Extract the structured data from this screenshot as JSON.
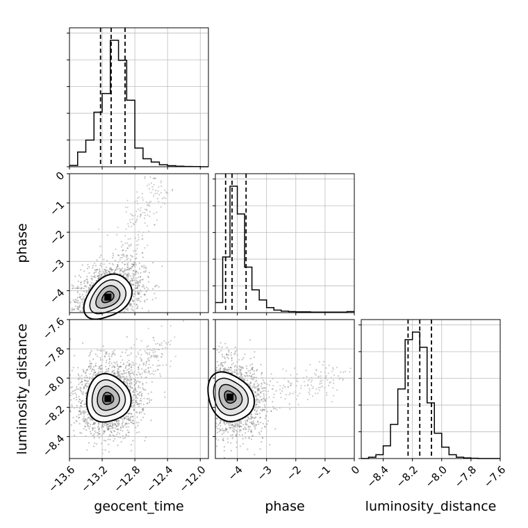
{
  "chart_data": {
    "type": "corner",
    "parameters": [
      {
        "label": "geocent_time",
        "range": [
          -13.6,
          -11.9
        ],
        "ticks": [
          -13.6,
          -13.2,
          -12.8,
          -12.4,
          -12.0
        ],
        "tick_labels": [
          "−13.6",
          "−13.2",
          "−12.8",
          "−12.4",
          "−12.0"
        ],
        "quantiles": [
          -13.22,
          -13.09,
          -12.92
        ],
        "hist_bins": [
          -13.6,
          -13.5,
          -13.4,
          -13.3,
          -13.2,
          -13.1,
          -13.0,
          -12.9,
          -12.8,
          -12.7,
          -12.6,
          -12.5,
          -12.4,
          -12.3,
          -12.2,
          -12.1,
          -12.0,
          -11.9
        ],
        "hist_values": [
          0.01,
          0.11,
          0.2,
          0.41,
          0.55,
          0.95,
          0.8,
          0.5,
          0.14,
          0.06,
          0.035,
          0.015,
          0.008,
          0.004,
          0.002,
          0.001,
          0.0
        ]
      },
      {
        "label": "phase",
        "range": [
          -4.75,
          0.0
        ],
        "ticks": [
          -4,
          -3,
          -2,
          -1,
          0
        ],
        "tick_labels": [
          "−4",
          "−3",
          "−2",
          "−1",
          "0"
        ],
        "quantiles": [
          -4.4,
          -4.18,
          -3.7
        ],
        "hist_bins": [
          -4.75,
          -4.5,
          -4.25,
          -4.0,
          -3.75,
          -3.5,
          -3.25,
          -3.0,
          -2.75,
          -2.5,
          -2.25,
          -2.0,
          -1.75,
          -1.5,
          -1.25,
          -1.0,
          -0.75,
          -0.5,
          -0.25,
          0.0
        ],
        "hist_values": [
          0.04,
          0.22,
          0.5,
          0.39,
          0.18,
          0.09,
          0.05,
          0.02,
          0.01,
          0.006,
          0.004,
          0.003,
          0.003,
          0.002,
          0.002,
          0.002,
          0.002,
          0.002,
          0.004
        ]
      },
      {
        "label": "luminosity_distance",
        "range": [
          -8.55,
          -7.6
        ],
        "ticks": [
          -8.4,
          -8.2,
          -8.0,
          -7.8,
          -7.6
        ],
        "tick_labels": [
          "−8.4",
          "−8.2",
          "−8.0",
          "−7.8",
          "−7.6"
        ],
        "quantiles": [
          -8.23,
          -8.15,
          -8.07
        ],
        "hist_bins": [
          -8.55,
          -8.5,
          -8.45,
          -8.4,
          -8.35,
          -8.3,
          -8.25,
          -8.2,
          -8.15,
          -8.1,
          -8.05,
          -8.0,
          -7.95,
          -7.9,
          -7.85,
          -7.8,
          -7.75,
          -7.7,
          -7.65,
          -7.6
        ],
        "hist_values": [
          0.0,
          0.01,
          0.03,
          0.1,
          0.27,
          0.55,
          0.94,
          1.0,
          0.88,
          0.44,
          0.2,
          0.09,
          0.03,
          0.01,
          0.005,
          0.002,
          0.0,
          0.0,
          0.0
        ]
      }
    ],
    "pair_panels": [
      {
        "x_param": 0,
        "y_param": 1,
        "peak": [
          -13.13,
          -4.22
        ],
        "contour_levels_sigma": [
          0.5,
          1.0,
          1.5,
          2.0
        ],
        "sigma": [
          0.14,
          0.37
        ],
        "tilt": 0.35,
        "scatter_tail_to": [
          -12.5,
          -0.2
        ]
      },
      {
        "x_param": 0,
        "y_param": 2,
        "peak": [
          -13.13,
          -8.14
        ],
        "contour_levels_sigma": [
          0.5,
          1.0,
          1.5,
          2.0
        ],
        "sigma": [
          0.13,
          0.085
        ],
        "tilt": 0.0,
        "scatter_tail_to": [
          -12.4,
          -7.75
        ]
      },
      {
        "x_param": 1,
        "y_param": 2,
        "peak": [
          -4.25,
          -8.13
        ],
        "contour_levels_sigma": [
          0.5,
          1.0,
          1.5,
          2.0
        ],
        "sigma": [
          0.38,
          0.085
        ],
        "tilt": -0.2,
        "scatter_tail_to": [
          -0.5,
          -8.0
        ]
      }
    ],
    "grid": true,
    "quantile_line_style": "dashed"
  }
}
